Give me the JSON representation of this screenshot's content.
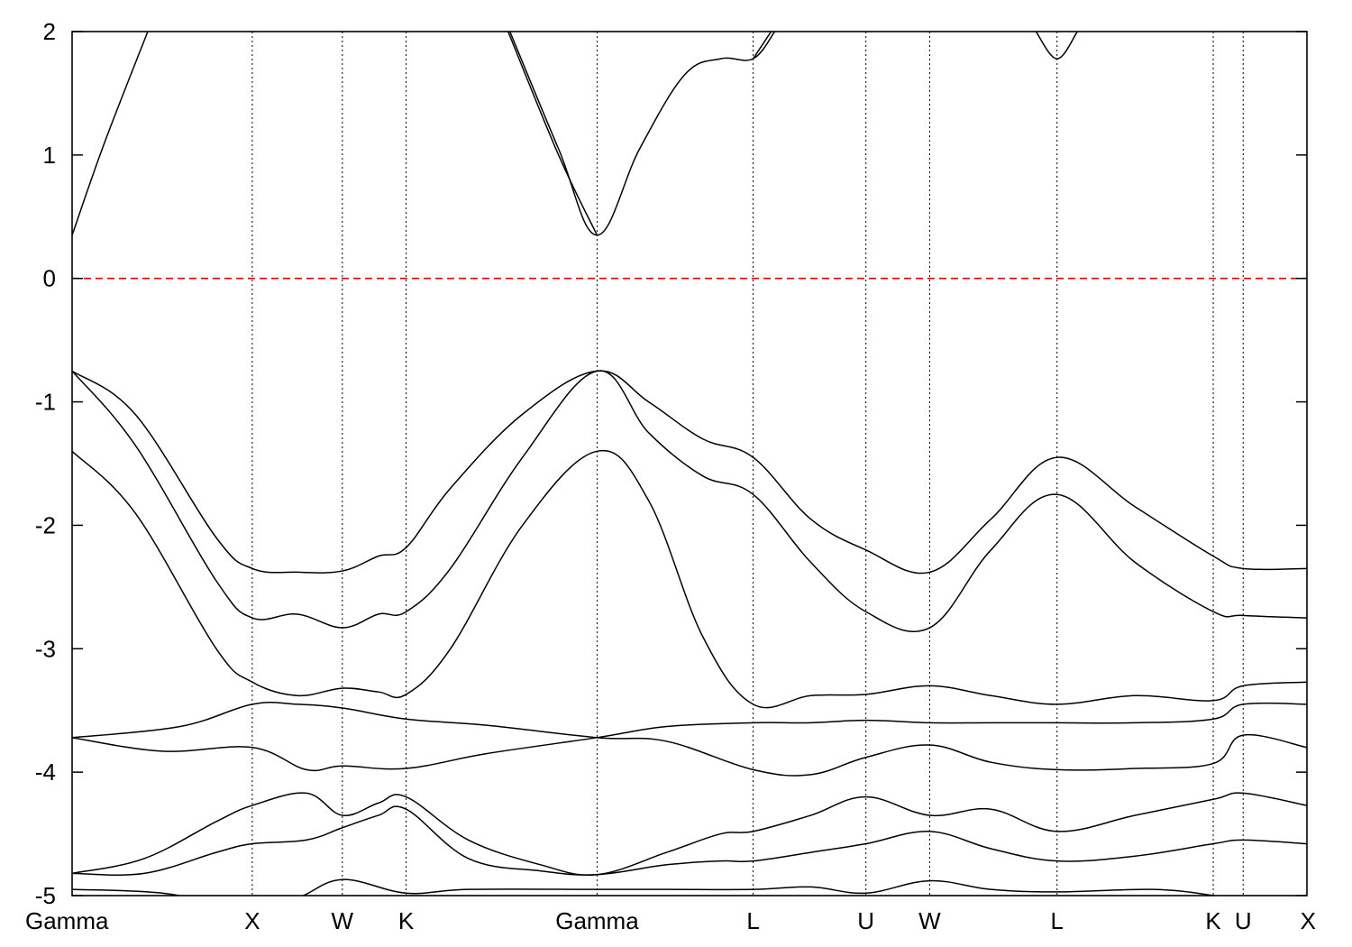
{
  "chart_data": {
    "type": "line",
    "title": "",
    "xlabel": "",
    "ylabel": "",
    "ylim": [
      -5,
      2
    ],
    "yticks": [
      -5,
      -4,
      -3,
      -2,
      -1,
      0,
      1,
      2
    ],
    "grid": "vertical dotted lines at high-symmetry points",
    "fermi_level": 0,
    "kpoints": [
      {
        "label": "Gamma",
        "x": 0.0
      },
      {
        "label": "X",
        "x": 1.0
      },
      {
        "label": "W",
        "x": 1.5
      },
      {
        "label": "K",
        "x": 1.854
      },
      {
        "label": "Gamma",
        "x": 2.914
      },
      {
        "label": "L",
        "x": 3.78
      },
      {
        "label": "U",
        "x": 4.406
      },
      {
        "label": "W",
        "x": 4.76
      },
      {
        "label": "L",
        "x": 5.467
      },
      {
        "label": "K",
        "x": 6.334
      },
      {
        "label": "U",
        "x": 6.5
      },
      {
        "label": "X",
        "x": 6.854
      }
    ],
    "series": [
      {
        "x": [
          0,
          0.18,
          0.42
        ],
        "values": [
          0.35,
          1.1,
          2.0
        ]
      },
      {
        "x": [
          2.43,
          2.7,
          2.914,
          3.15,
          3.4,
          3.6,
          3.78,
          3.9
        ],
        "values": [
          2.0,
          1.05,
          0.35,
          1.05,
          1.65,
          1.78,
          1.78,
          2.0
        ]
      },
      {
        "x": [
          2.42,
          2.7,
          2.914
        ],
        "values": [
          2.0,
          1.0,
          0.35
        ]
      },
      {
        "x": [
          3.78,
          3.88
        ],
        "values": [
          1.78,
          2.0
        ]
      },
      {
        "x": [
          5.35,
          5.467,
          5.58
        ],
        "values": [
          2.0,
          1.78,
          2.0
        ]
      },
      {
        "x": [
          0,
          0.35,
          0.8,
          1.0,
          1.25,
          1.5,
          1.7,
          1.854,
          2.1,
          2.5,
          2.914,
          3.2,
          3.5,
          3.78,
          4.1,
          4.406,
          4.76,
          5.1,
          5.467,
          5.9,
          6.334,
          6.5,
          6.854
        ],
        "values": [
          -0.75,
          -1.1,
          -2.1,
          -2.35,
          -2.38,
          -2.37,
          -2.25,
          -2.18,
          -1.7,
          -1.1,
          -0.75,
          -1.0,
          -1.3,
          -1.45,
          -1.95,
          -2.2,
          -2.38,
          -1.95,
          -1.45,
          -1.85,
          -2.25,
          -2.35,
          -2.35
        ]
      },
      {
        "x": [
          0,
          0.35,
          0.8,
          1.0,
          1.25,
          1.5,
          1.7,
          1.854,
          2.1,
          2.5,
          2.914,
          3.2,
          3.5,
          3.78,
          4.1,
          4.406,
          4.76,
          5.1,
          5.467,
          5.9,
          6.334,
          6.5,
          6.854
        ],
        "values": [
          -0.75,
          -1.35,
          -2.45,
          -2.75,
          -2.72,
          -2.83,
          -2.72,
          -2.7,
          -2.35,
          -1.45,
          -0.75,
          -1.25,
          -1.6,
          -1.75,
          -2.3,
          -2.7,
          -2.83,
          -2.2,
          -1.75,
          -2.3,
          -2.7,
          -2.73,
          -2.75
        ]
      },
      {
        "x": [
          0,
          0.35,
          0.8,
          1.0,
          1.25,
          1.5,
          1.7,
          1.854,
          2.1,
          2.5,
          2.914,
          3.2,
          3.5,
          3.78,
          4.1,
          4.406,
          4.76,
          5.1,
          5.467,
          5.9,
          6.334,
          6.5,
          6.854
        ],
        "values": [
          -1.4,
          -1.9,
          -3.0,
          -3.27,
          -3.38,
          -3.32,
          -3.35,
          -3.37,
          -3.0,
          -2.0,
          -1.4,
          -1.8,
          -2.9,
          -3.45,
          -3.38,
          -3.37,
          -3.3,
          -3.38,
          -3.45,
          -3.38,
          -3.42,
          -3.3,
          -3.27
        ]
      },
      {
        "x": [
          0,
          0.5,
          1.0,
          1.3,
          1.5,
          1.854,
          2.3,
          2.914,
          3.3,
          3.78,
          4.1,
          4.406,
          4.76,
          5.1,
          5.467,
          5.9,
          6.334,
          6.5,
          6.854
        ],
        "values": [
          -3.72,
          -3.83,
          -3.8,
          -3.98,
          -3.95,
          -3.97,
          -3.85,
          -3.72,
          -3.63,
          -3.6,
          -3.6,
          -3.58,
          -3.6,
          -3.6,
          -3.6,
          -3.6,
          -3.57,
          -3.45,
          -3.45
        ]
      },
      {
        "x": [
          0,
          0.6,
          1.0,
          1.25,
          1.5,
          1.854,
          2.3,
          2.914,
          3.3,
          3.78,
          4.1,
          4.406,
          4.76,
          5.1,
          5.467,
          5.9,
          6.334,
          6.5,
          6.854
        ],
        "values": [
          -3.72,
          -3.63,
          -3.45,
          -3.45,
          -3.48,
          -3.57,
          -3.62,
          -3.72,
          -3.75,
          -3.98,
          -4.02,
          -3.88,
          -3.78,
          -3.92,
          -3.98,
          -3.97,
          -3.93,
          -3.7,
          -3.8
        ]
      },
      {
        "x": [
          0,
          0.4,
          0.8,
          1.0,
          1.3,
          1.5,
          1.7,
          1.854,
          2.2,
          2.6,
          2.914,
          3.3,
          3.6,
          3.78,
          4.1,
          4.406,
          4.76,
          5.1,
          5.467,
          5.9,
          6.334,
          6.5,
          6.854
        ],
        "values": [
          -4.82,
          -4.7,
          -4.4,
          -4.27,
          -4.17,
          -4.35,
          -4.25,
          -4.2,
          -4.55,
          -4.75,
          -4.83,
          -4.65,
          -4.5,
          -4.48,
          -4.35,
          -4.2,
          -4.35,
          -4.3,
          -4.48,
          -4.35,
          -4.22,
          -4.17,
          -4.27
        ]
      },
      {
        "x": [
          0,
          0.4,
          0.8,
          1.0,
          1.3,
          1.5,
          1.7,
          1.854,
          2.2,
          2.6,
          2.914,
          3.3,
          3.6,
          3.78,
          4.1,
          4.406,
          4.76,
          5.1,
          5.467,
          5.9,
          6.334,
          6.5,
          6.854
        ],
        "values": [
          -4.82,
          -4.82,
          -4.65,
          -4.58,
          -4.55,
          -4.45,
          -4.35,
          -4.3,
          -4.7,
          -4.8,
          -4.83,
          -4.75,
          -4.72,
          -4.72,
          -4.65,
          -4.58,
          -4.48,
          -4.62,
          -4.72,
          -4.68,
          -4.58,
          -4.55,
          -4.58
        ]
      },
      {
        "x": [
          0,
          0.5,
          1.0,
          1.25,
          1.5,
          1.854,
          2.2,
          2.914,
          3.3,
          3.78,
          4.1,
          4.406,
          4.76,
          5.1,
          5.467,
          6.0,
          6.334,
          6.5,
          6.854
        ],
        "values": [
          -4.95,
          -4.98,
          -5.1,
          -5.02,
          -4.87,
          -4.98,
          -4.95,
          -4.95,
          -4.95,
          -4.95,
          -4.93,
          -4.98,
          -4.88,
          -4.95,
          -4.97,
          -4.95,
          -5.0,
          -5.05,
          -5.1
        ]
      }
    ]
  }
}
